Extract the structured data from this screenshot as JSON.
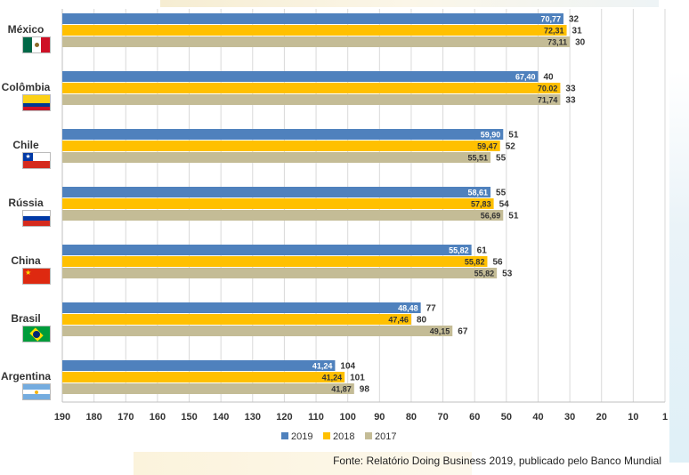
{
  "chart_data": {
    "type": "bar",
    "orientation": "horizontal",
    "x_axis": "reversed",
    "categories": [
      "México",
      "Colômbia",
      "Chile",
      "Rússia",
      "China",
      "Brasil",
      "Argentina"
    ],
    "xticks": [
      "190",
      "180",
      "170",
      "160",
      "150",
      "140",
      "130",
      "120",
      "110",
      "100",
      "90",
      "80",
      "70",
      "60",
      "50",
      "40",
      "30",
      "20",
      "10",
      "1"
    ],
    "xlim": [
      190,
      1
    ],
    "grid": true,
    "legend_position": "bottom",
    "series": [
      {
        "name": "2019",
        "color": "#4f81bd",
        "label_color": "#ffffff",
        "rank": [
          32,
          40,
          51,
          55,
          61,
          77,
          104
        ],
        "score_labels": [
          "70,77",
          "67,40",
          "59,90",
          "58,61",
          "55,82",
          "48,48",
          "41,24"
        ]
      },
      {
        "name": "2018",
        "color": "#ffc000",
        "label_color": "#333333",
        "rank": [
          31,
          33,
          52,
          54,
          56,
          80,
          101
        ],
        "score_labels": [
          "72,31",
          "70.02",
          "59,47",
          "57,83",
          "55,82",
          "47,46",
          "41,24"
        ]
      },
      {
        "name": "2017",
        "color": "#c4bc96",
        "label_color": "#333333",
        "rank": [
          30,
          33,
          55,
          51,
          53,
          67,
          98
        ],
        "score_labels": [
          "73,11",
          "71,74",
          "55,51",
          "56,69",
          "55,82",
          "49,15",
          "41,87"
        ]
      }
    ]
  },
  "flags": [
    "mexico-flag-icon",
    "colombia-flag-icon",
    "chile-flag-icon",
    "russia-flag-icon",
    "china-flag-icon",
    "brazil-flag-icon",
    "argentina-flag-icon"
  ],
  "colors": {
    "grid": "#d9d9d9",
    "axis": "#bfbfbf",
    "text": "#333333"
  },
  "source": "Fonte: Relatório Doing Business 2019, publicado pelo Banco Mundial"
}
